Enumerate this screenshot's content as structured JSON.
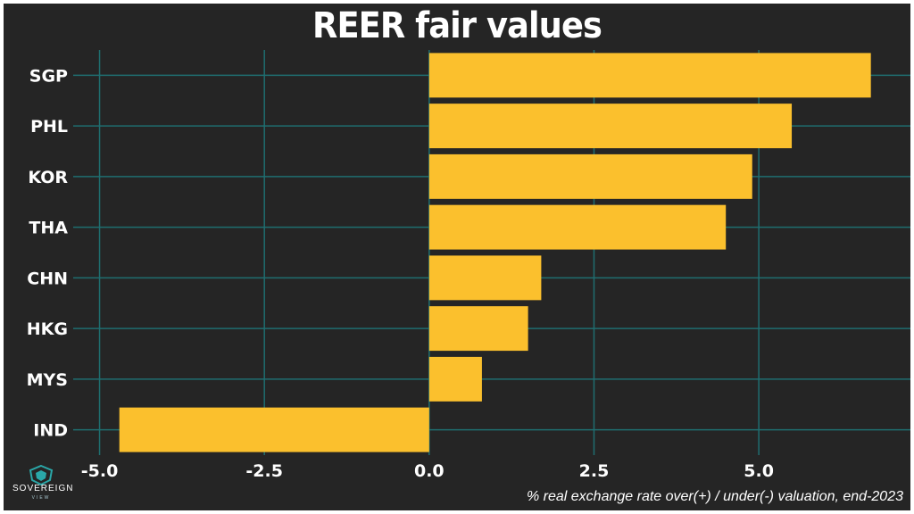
{
  "chart_data": {
    "type": "bar",
    "orientation": "horizontal",
    "title": "REER fair values",
    "xlabel": "% real exchange rate over(+) / under(-) valuation, end-2023",
    "ylabel": "",
    "categories": [
      "SGP",
      "PHL",
      "KOR",
      "THA",
      "CHN",
      "HKG",
      "MYS",
      "IND"
    ],
    "values": [
      6.7,
      5.5,
      4.9,
      4.5,
      1.7,
      1.5,
      0.8,
      -4.7
    ],
    "xlim": [
      -5.4,
      7.3
    ],
    "xticks": [
      -5.0,
      -2.5,
      0.0,
      2.5,
      5.0
    ],
    "xtick_labels": [
      "-5.0",
      "-2.5",
      "0.0",
      "2.5",
      "5.0"
    ],
    "grid": true,
    "legend": "none",
    "colors": {
      "background": "#252525",
      "bar": "#fbc02d",
      "grid": "#1f6e70",
      "text": "#ffffff"
    }
  },
  "branding": {
    "logo_name": "SOVEREIGN",
    "logo_sub": "VIEW",
    "logo_icon": "shield-icon"
  }
}
